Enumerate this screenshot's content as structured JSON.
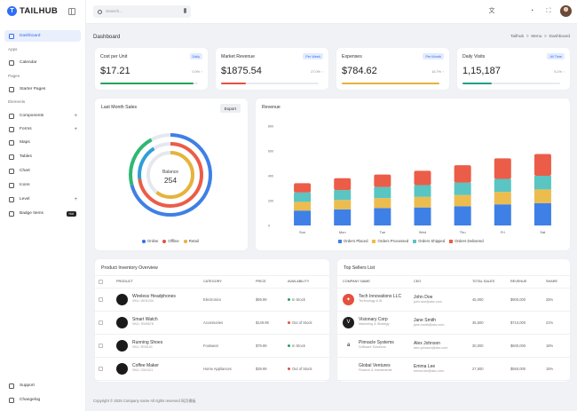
{
  "brand": {
    "logo": "T",
    "name": "TAILHUB"
  },
  "sidebar": {
    "sections": {
      "apps": "Apps",
      "pages": "Pages",
      "elements": "Elements"
    },
    "items": [
      {
        "label": "Dashboard",
        "icon": "home-icon",
        "active": true
      },
      {
        "label": "Calendar",
        "icon": "calendar-icon"
      },
      {
        "label": "Starter Pages",
        "icon": "file-icon"
      },
      {
        "label": "Components",
        "icon": "box-icon",
        "expandable": true
      },
      {
        "label": "Forms",
        "icon": "edit-icon",
        "expandable": true
      },
      {
        "label": "Maps",
        "icon": "map-pin-icon"
      },
      {
        "label": "Tables",
        "icon": "table-icon"
      },
      {
        "label": "Chart",
        "icon": "chart-icon"
      },
      {
        "label": "Icons",
        "icon": "grid-icon"
      },
      {
        "label": "Level",
        "icon": "layers-icon",
        "expandable": true
      },
      {
        "label": "Badge Items",
        "icon": "badge-icon",
        "badge": "Hot"
      }
    ],
    "plus": "+",
    "footer": [
      {
        "label": "Support",
        "icon": "headphones-icon"
      },
      {
        "label": "Changelog",
        "icon": "bell-icon"
      }
    ]
  },
  "topbar": {
    "search_placeholder": "Search...",
    "icons": [
      "translate-icon",
      "notification-icon",
      "fullscreen-icon",
      "settings-icon"
    ],
    "glyphs": [
      "文",
      "◔",
      "⛶",
      "⚙"
    ]
  },
  "page": {
    "title": "Dashboard",
    "breadcrumb": [
      "Tailhub",
      "Menu",
      "Dashboard"
    ],
    "sep": ">"
  },
  "kpis": [
    {
      "label": "Cost per Unit",
      "badge": "Daily",
      "value": "$17.21",
      "pct": "0.0% ↑",
      "color": "#22a35a",
      "fill": 0.95
    },
    {
      "label": "Market Revenue",
      "badge": "Per Week",
      "value": "$1875.54",
      "pct": "27.0% ↑",
      "color": "#e5503f",
      "fill": 0.25
    },
    {
      "label": "Expenses",
      "badge": "Per Month",
      "value": "$784.62",
      "pct": "16.7% ↑",
      "color": "#e6b33a",
      "fill": 1.0
    },
    {
      "label": "Daily Visits",
      "badge": "All Time",
      "value": "1,15,187",
      "pct": "5.1% ↑",
      "color": "#1a9e8f",
      "fill": 0.3
    }
  ],
  "sales": {
    "title": "Last Month Sales",
    "export": "Export",
    "center_label": "Balance",
    "center_value": "254",
    "legend": [
      {
        "name": "Online",
        "color": "#2f6df6"
      },
      {
        "name": "Offline",
        "color": "#e5503f"
      },
      {
        "name": "Retail",
        "color": "#e6b33a"
      }
    ]
  },
  "revenue": {
    "title": "Revenue"
  },
  "chart_data": {
    "type": "bar",
    "stacked": true,
    "categories": [
      "Sun",
      "Mon",
      "Tue",
      "Wed",
      "Thu",
      "Fri",
      "Sat"
    ],
    "ylim": [
      0,
      800
    ],
    "yticks": [
      0,
      200,
      400,
      600,
      800
    ],
    "series": [
      {
        "name": "Orders Placed",
        "color": "#3f80e6",
        "values": [
          120,
          130,
          140,
          145,
          155,
          170,
          180
        ]
      },
      {
        "name": "Orders Processed",
        "color": "#ecbd4e",
        "values": [
          70,
          75,
          80,
          85,
          90,
          100,
          110
        ]
      },
      {
        "name": "Orders Shipped",
        "color": "#5ac5c2",
        "values": [
          75,
          80,
          90,
          95,
          100,
          105,
          110
        ]
      },
      {
        "name": "Orders Delivered",
        "color": "#eb5d48",
        "values": [
          75,
          95,
          100,
          115,
          140,
          165,
          175
        ]
      }
    ]
  },
  "inventory": {
    "title": "Product Inventory Overview",
    "headers": [
      "PRODUCT",
      "CATEGORY",
      "PRICE",
      "AVAILABILITY"
    ],
    "rows": [
      {
        "name": "Wireless Headphones",
        "sku": "SKU: WH1234",
        "category": "Electronics",
        "price": "$99.99",
        "status": "In Stock",
        "status_color": "#22a35a"
      },
      {
        "name": "Smart Watch",
        "sku": "SKU: SW5678",
        "category": "Accessories",
        "price": "$149.99",
        "status": "Out of Stock",
        "status_color": "#e5503f"
      },
      {
        "name": "Running Shoes",
        "sku": "SKU: RS9101",
        "category": "Footwear",
        "price": "$79.99",
        "status": "In Stock",
        "status_color": "#22a35a"
      },
      {
        "name": "Coffee Maker",
        "sku": "SKU: CM1121",
        "category": "Home Appliances",
        "price": "$39.99",
        "status": "Out of Stock",
        "status_color": "#e5503f"
      }
    ]
  },
  "sellers": {
    "title": "Top Sellers List",
    "headers": [
      "COMPANY NAME",
      "CEO",
      "TOTAL SALES",
      "REVENUE",
      "SHARE"
    ],
    "rows": [
      {
        "company": "Tech Innovations LLC",
        "industry": "Technology & AI",
        "ceo": "John Doe",
        "email": "john.doe@abc.com",
        "sales": "45,000",
        "revenue": "$900,000",
        "share": "25%",
        "logo_color": "#e5503f",
        "logo": "✦"
      },
      {
        "company": "Visionary Corp",
        "industry": "Marketing & Strategy",
        "ceo": "Jane Smith",
        "email": "jane.smith@abc.com",
        "sales": "35,500",
        "revenue": "$710,000",
        "share": "21%",
        "logo_color": "#1e1e1e",
        "logo": "V"
      },
      {
        "company": "Pinnacle Systems",
        "industry": "Software Solutions",
        "ceo": "Alex Johnson",
        "email": "alex.johnson@abc.com",
        "sales": "30,000",
        "revenue": "$600,000",
        "share": "18%",
        "logo_color": "#ffffff",
        "logo": "a"
      },
      {
        "company": "Global Ventures",
        "industry": "Finance & Investments",
        "ceo": "Emma Lee",
        "email": "emma.lee@abc.com",
        "sales": "27,500",
        "revenue": "$550,000",
        "share": "15%",
        "logo_color": "#ffffff",
        "logo": ""
      }
    ]
  },
  "footer": {
    "text": "Copyright © 2025 Company name All rights reserved 网页模板"
  }
}
